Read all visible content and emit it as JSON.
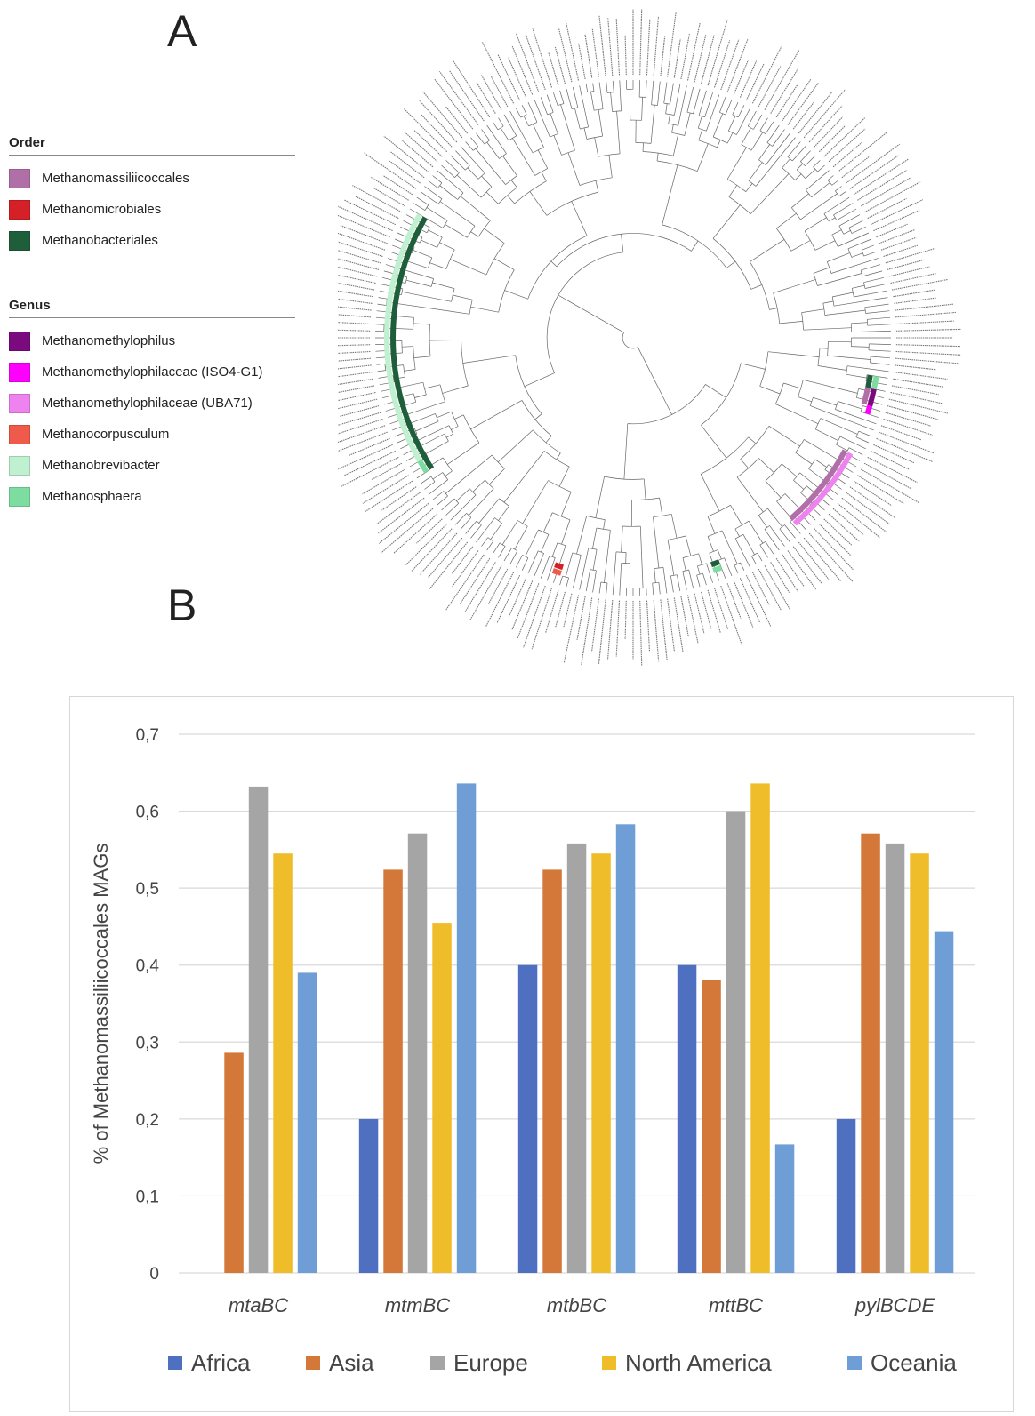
{
  "panel_a": {
    "letter": "A",
    "order_legend": {
      "title": "Order",
      "items": [
        {
          "label": "Methanomassiliicoccales",
          "color": "#b06fa6"
        },
        {
          "label": "Methanomicrobiales",
          "color": "#d42026"
        },
        {
          "label": "Methanobacteriales",
          "color": "#1f5e3a"
        }
      ]
    },
    "genus_legend": {
      "title": "Genus",
      "items": [
        {
          "label": "Methanomethylophilus",
          "color": "#7a0a7d"
        },
        {
          "label": "Methanomethylophilaceae (ISO4-G1)",
          "color": "#ff00ff"
        },
        {
          "label": "Methanomethylophilaceae (UBA71)",
          "color": "#ee82ee"
        },
        {
          "label": "Methanocorpusculum",
          "color": "#f05a4a"
        },
        {
          "label": "Methanobrevibacter",
          "color": "#bff0cf"
        },
        {
          "label": "Methanosphaera",
          "color": "#7ddc9f"
        }
      ]
    }
  },
  "panel_b": {
    "letter": "B"
  },
  "chart_data": {
    "type": "bar",
    "title": "",
    "xlabel": "",
    "ylabel": "% of Methanomassiliicoccales MAGs",
    "ylim": [
      0,
      0.7
    ],
    "yticks": [
      "0",
      "0,1",
      "0,2",
      "0,3",
      "0,4",
      "0,5",
      "0,6",
      "0,7"
    ],
    "grid": true,
    "legend_position": "bottom",
    "categories": [
      "mtaBC",
      "mtmBC",
      "mtbBC",
      "mttBC",
      "pylBCDE"
    ],
    "series": [
      {
        "name": "Africa",
        "color": "#4f6fc0",
        "values": [
          0,
          0.2,
          0.4,
          0.4,
          0.2
        ]
      },
      {
        "name": "Asia",
        "color": "#d4783a",
        "values": [
          0.286,
          0.524,
          0.524,
          0.381,
          0.571
        ]
      },
      {
        "name": "Europe",
        "color": "#a5a5a5",
        "values": [
          0.632,
          0.571,
          0.558,
          0.6,
          0.558
        ]
      },
      {
        "name": "North America",
        "color": "#f0bd2a",
        "values": [
          0.545,
          0.455,
          0.545,
          0.636,
          0.545
        ]
      },
      {
        "name": "Oceania",
        "color": "#6f9ed6",
        "values": [
          0.39,
          0.636,
          0.583,
          0.167,
          0.444
        ]
      }
    ]
  }
}
